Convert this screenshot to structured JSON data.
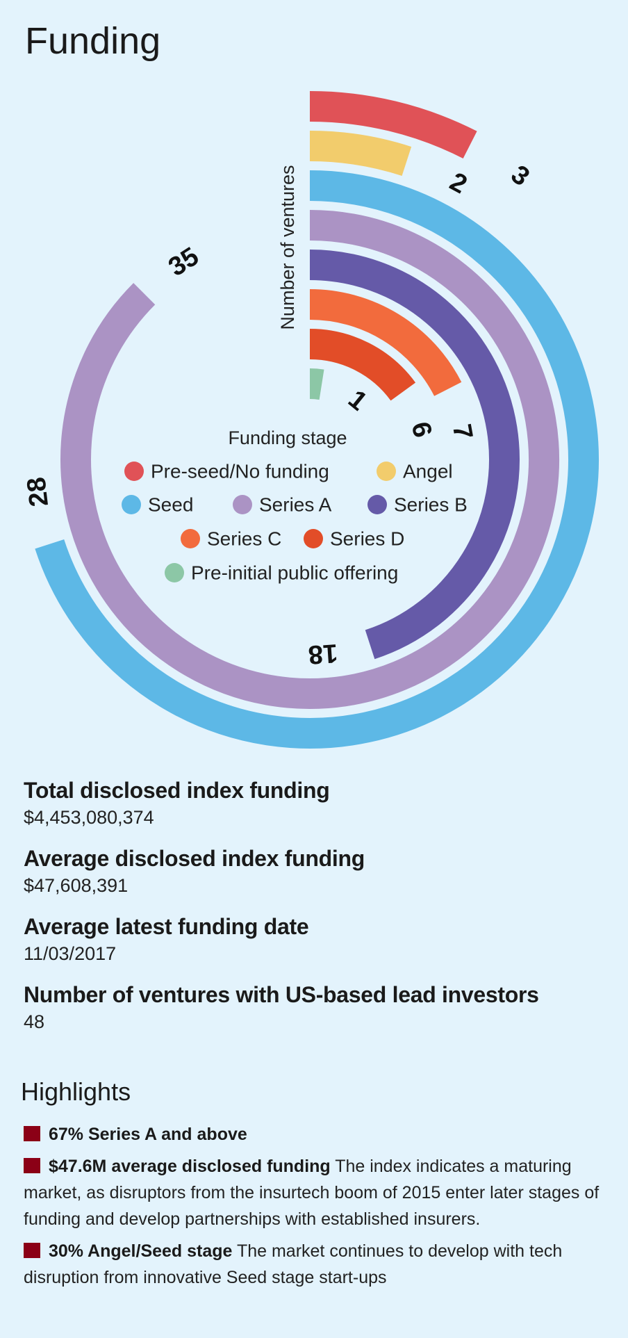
{
  "title": "Funding",
  "chart_data": {
    "type": "radial-bar",
    "title": "Funding",
    "axis_label": "Number of ventures",
    "legend_title": "Funding stage",
    "scale_max": 40,
    "series": [
      {
        "name": "Pre-seed/No funding",
        "value": 3,
        "color": "#e05257"
      },
      {
        "name": "Angel",
        "value": 2,
        "color": "#f2cc6c"
      },
      {
        "name": "Seed",
        "value": 28,
        "color": "#5db8e6"
      },
      {
        "name": "Series A",
        "value": 35,
        "color": "#ab93c4"
      },
      {
        "name": "Series B",
        "value": 18,
        "color": "#655aa8"
      },
      {
        "name": "Series C",
        "value": 7,
        "color": "#f26b3d"
      },
      {
        "name": "Series D",
        "value": 6,
        "color": "#e24d28"
      },
      {
        "name": "Pre-initial public offering",
        "value": 1,
        "color": "#8cc7a6"
      }
    ]
  },
  "stats": [
    {
      "label": "Total disclosed index funding",
      "value": "$4,453,080,374"
    },
    {
      "label": "Average disclosed index funding",
      "value": "$47,608,391"
    },
    {
      "label": "Average latest funding date",
      "value": "11/03/2017"
    },
    {
      "label": "Number of ventures with US-based lead investors",
      "value": "48"
    }
  ],
  "highlights": {
    "title": "Highlights",
    "items": [
      {
        "bold": "67% Series A and above",
        "text": ""
      },
      {
        "bold": "$47.6M average disclosed funding",
        "text": " The index indicates a maturing market, as disruptors from the insurtech boom of 2015 enter later stages of funding and develop partnerships with established insurers."
      },
      {
        "bold": "30% Angel/Seed stage",
        "text": " The market continues to develop with tech disruption from innovative Seed stage start-ups"
      }
    ],
    "bullet_color": "#8b0016"
  }
}
